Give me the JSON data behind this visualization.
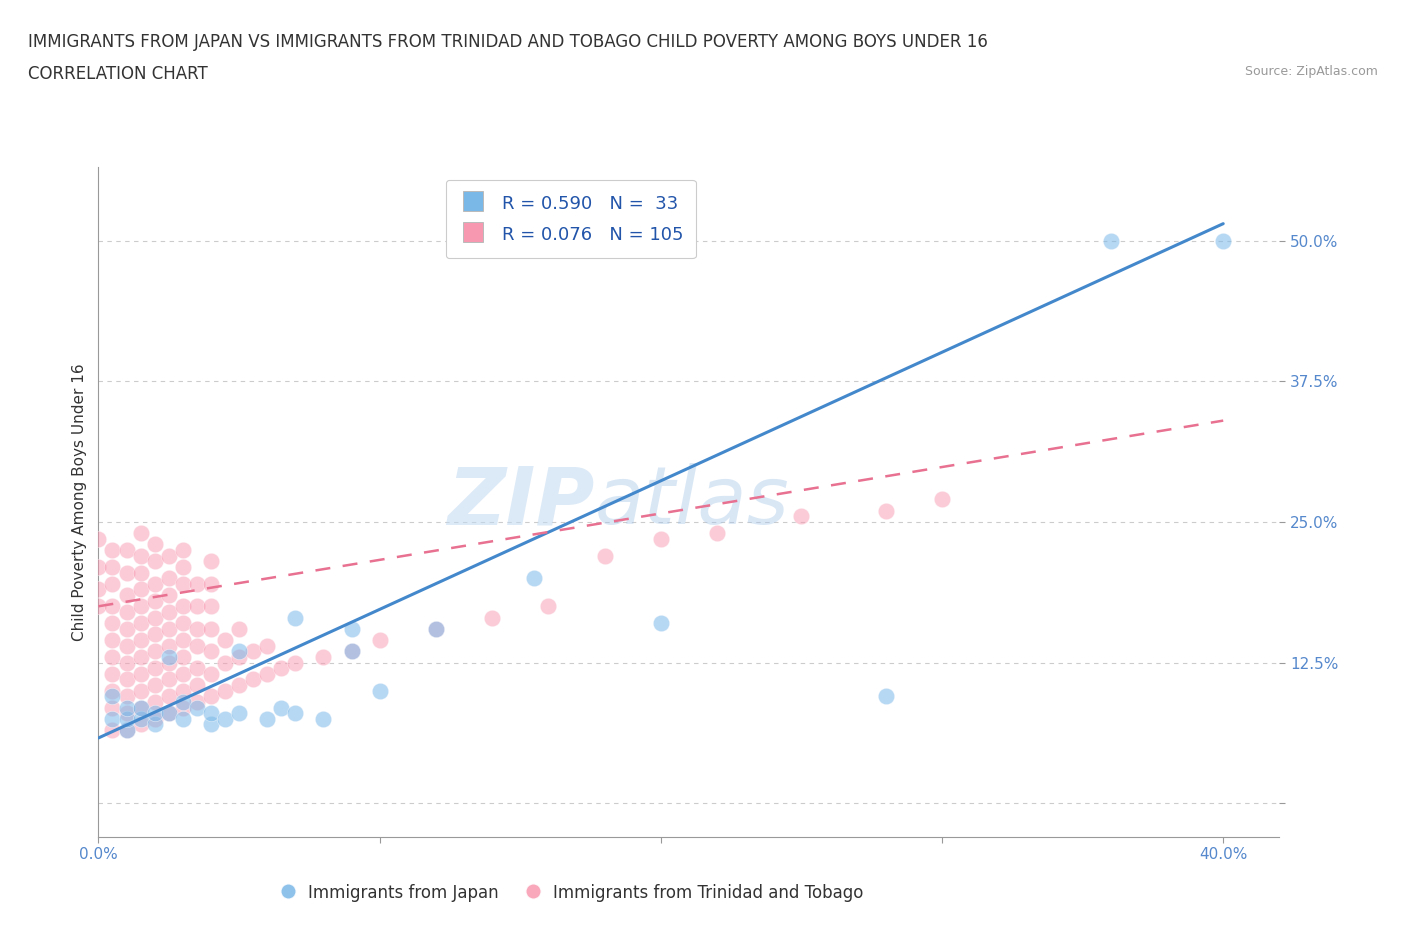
{
  "title_line1": "IMMIGRANTS FROM JAPAN VS IMMIGRANTS FROM TRINIDAD AND TOBAGO CHILD POVERTY AMONG BOYS UNDER 16",
  "title_line2": "CORRELATION CHART",
  "source": "Source: ZipAtlas.com",
  "ylabel": "Child Poverty Among Boys Under 16",
  "xlim": [
    0.0,
    0.42
  ],
  "ylim": [
    -0.03,
    0.565
  ],
  "ytick_positions": [
    0.0,
    0.125,
    0.25,
    0.375,
    0.5
  ],
  "ytick_labels": [
    "",
    "12.5%",
    "25.0%",
    "37.5%",
    "50.0%"
  ],
  "xtick_positions": [
    0.0,
    0.1,
    0.2,
    0.3,
    0.4
  ],
  "xtick_labels": [
    "0.0%",
    "",
    "",
    "",
    "40.0%"
  ],
  "watermark_zip": "ZIP",
  "watermark_atlas": "atlas",
  "japan_color": "#7ab8e8",
  "trinidad_color": "#f898b0",
  "japan_line_color": "#4488cc",
  "trinidad_line_color": "#e87090",
  "japan_scatter": [
    [
      0.005,
      0.075
    ],
    [
      0.005,
      0.095
    ],
    [
      0.01,
      0.065
    ],
    [
      0.01,
      0.075
    ],
    [
      0.01,
      0.085
    ],
    [
      0.015,
      0.075
    ],
    [
      0.015,
      0.085
    ],
    [
      0.02,
      0.07
    ],
    [
      0.02,
      0.08
    ],
    [
      0.025,
      0.08
    ],
    [
      0.025,
      0.13
    ],
    [
      0.03,
      0.075
    ],
    [
      0.03,
      0.09
    ],
    [
      0.035,
      0.085
    ],
    [
      0.04,
      0.07
    ],
    [
      0.04,
      0.08
    ],
    [
      0.045,
      0.075
    ],
    [
      0.05,
      0.08
    ],
    [
      0.05,
      0.135
    ],
    [
      0.06,
      0.075
    ],
    [
      0.065,
      0.085
    ],
    [
      0.07,
      0.08
    ],
    [
      0.07,
      0.165
    ],
    [
      0.08,
      0.075
    ],
    [
      0.09,
      0.135
    ],
    [
      0.09,
      0.155
    ],
    [
      0.1,
      0.1
    ],
    [
      0.12,
      0.155
    ],
    [
      0.155,
      0.2
    ],
    [
      0.2,
      0.16
    ],
    [
      0.28,
      0.095
    ],
    [
      0.36,
      0.5
    ],
    [
      0.4,
      0.5
    ]
  ],
  "trinidad_scatter": [
    [
      0.0,
      0.175
    ],
    [
      0.0,
      0.19
    ],
    [
      0.0,
      0.21
    ],
    [
      0.0,
      0.235
    ],
    [
      0.005,
      0.065
    ],
    [
      0.005,
      0.085
    ],
    [
      0.005,
      0.1
    ],
    [
      0.005,
      0.115
    ],
    [
      0.005,
      0.13
    ],
    [
      0.005,
      0.145
    ],
    [
      0.005,
      0.16
    ],
    [
      0.005,
      0.175
    ],
    [
      0.005,
      0.195
    ],
    [
      0.005,
      0.21
    ],
    [
      0.005,
      0.225
    ],
    [
      0.01,
      0.065
    ],
    [
      0.01,
      0.08
    ],
    [
      0.01,
      0.095
    ],
    [
      0.01,
      0.11
    ],
    [
      0.01,
      0.125
    ],
    [
      0.01,
      0.14
    ],
    [
      0.01,
      0.155
    ],
    [
      0.01,
      0.17
    ],
    [
      0.01,
      0.185
    ],
    [
      0.01,
      0.205
    ],
    [
      0.01,
      0.225
    ],
    [
      0.015,
      0.07
    ],
    [
      0.015,
      0.085
    ],
    [
      0.015,
      0.1
    ],
    [
      0.015,
      0.115
    ],
    [
      0.015,
      0.13
    ],
    [
      0.015,
      0.145
    ],
    [
      0.015,
      0.16
    ],
    [
      0.015,
      0.175
    ],
    [
      0.015,
      0.19
    ],
    [
      0.015,
      0.205
    ],
    [
      0.015,
      0.22
    ],
    [
      0.015,
      0.24
    ],
    [
      0.02,
      0.075
    ],
    [
      0.02,
      0.09
    ],
    [
      0.02,
      0.105
    ],
    [
      0.02,
      0.12
    ],
    [
      0.02,
      0.135
    ],
    [
      0.02,
      0.15
    ],
    [
      0.02,
      0.165
    ],
    [
      0.02,
      0.18
    ],
    [
      0.02,
      0.195
    ],
    [
      0.02,
      0.215
    ],
    [
      0.02,
      0.23
    ],
    [
      0.025,
      0.08
    ],
    [
      0.025,
      0.095
    ],
    [
      0.025,
      0.11
    ],
    [
      0.025,
      0.125
    ],
    [
      0.025,
      0.14
    ],
    [
      0.025,
      0.155
    ],
    [
      0.025,
      0.17
    ],
    [
      0.025,
      0.185
    ],
    [
      0.025,
      0.2
    ],
    [
      0.025,
      0.22
    ],
    [
      0.03,
      0.085
    ],
    [
      0.03,
      0.1
    ],
    [
      0.03,
      0.115
    ],
    [
      0.03,
      0.13
    ],
    [
      0.03,
      0.145
    ],
    [
      0.03,
      0.16
    ],
    [
      0.03,
      0.175
    ],
    [
      0.03,
      0.195
    ],
    [
      0.03,
      0.21
    ],
    [
      0.03,
      0.225
    ],
    [
      0.035,
      0.09
    ],
    [
      0.035,
      0.105
    ],
    [
      0.035,
      0.12
    ],
    [
      0.035,
      0.14
    ],
    [
      0.035,
      0.155
    ],
    [
      0.035,
      0.175
    ],
    [
      0.035,
      0.195
    ],
    [
      0.04,
      0.095
    ],
    [
      0.04,
      0.115
    ],
    [
      0.04,
      0.135
    ],
    [
      0.04,
      0.155
    ],
    [
      0.04,
      0.175
    ],
    [
      0.04,
      0.195
    ],
    [
      0.04,
      0.215
    ],
    [
      0.045,
      0.1
    ],
    [
      0.045,
      0.125
    ],
    [
      0.045,
      0.145
    ],
    [
      0.05,
      0.105
    ],
    [
      0.05,
      0.13
    ],
    [
      0.05,
      0.155
    ],
    [
      0.055,
      0.11
    ],
    [
      0.055,
      0.135
    ],
    [
      0.06,
      0.115
    ],
    [
      0.06,
      0.14
    ],
    [
      0.065,
      0.12
    ],
    [
      0.07,
      0.125
    ],
    [
      0.08,
      0.13
    ],
    [
      0.09,
      0.135
    ],
    [
      0.1,
      0.145
    ],
    [
      0.12,
      0.155
    ],
    [
      0.14,
      0.165
    ],
    [
      0.16,
      0.175
    ],
    [
      0.18,
      0.22
    ],
    [
      0.2,
      0.235
    ],
    [
      0.22,
      0.24
    ],
    [
      0.25,
      0.255
    ],
    [
      0.28,
      0.26
    ],
    [
      0.3,
      0.27
    ]
  ],
  "japan_line": {
    "x0": 0.0,
    "y0": 0.058,
    "x1": 0.4,
    "y1": 0.515
  },
  "trinidad_line": {
    "x0": 0.0,
    "y0": 0.175,
    "x1": 0.4,
    "y1": 0.34
  },
  "grid_color": "#cccccc",
  "title_fontsize": 12,
  "subtitle_fontsize": 12,
  "axis_label_fontsize": 11,
  "tick_fontsize": 11,
  "tick_color": "#5588cc",
  "legend_text_color": "#2255aa",
  "legend_n_color": "#cc3333"
}
